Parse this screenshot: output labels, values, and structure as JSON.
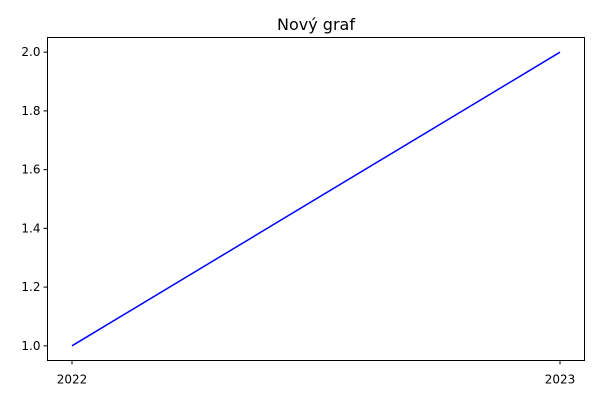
{
  "chart_data": {
    "type": "line",
    "title": "Nový graf",
    "xlabel": "",
    "ylabel": "",
    "x": [
      "2022",
      "2023"
    ],
    "series": [
      {
        "values": [
          1.0,
          2.0
        ],
        "color": "#0000ff"
      }
    ],
    "ylim": [
      0.95,
      2.05
    ],
    "yticks": [
      "1.0",
      "1.2",
      "1.4",
      "1.6",
      "1.8",
      "2.0"
    ],
    "grid": false,
    "legend": "none"
  }
}
